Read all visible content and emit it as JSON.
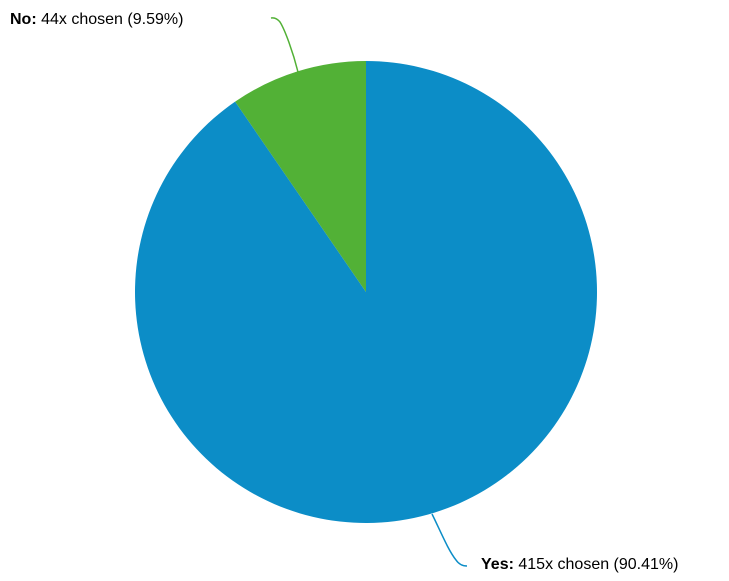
{
  "chart_data": {
    "type": "pie",
    "categories": [
      "Yes",
      "No"
    ],
    "values": [
      415,
      44
    ],
    "percentages": [
      "90.41%",
      "9.59%"
    ],
    "colors": [
      "#0c8dc7",
      "#52b136"
    ],
    "start": "12 o'clock, clockwise",
    "labels": [
      {
        "category": "Yes:",
        "text": "415x chosen (90.41%)"
      },
      {
        "category": "No:",
        "text": "44x chosen (9.59%)"
      }
    ]
  }
}
